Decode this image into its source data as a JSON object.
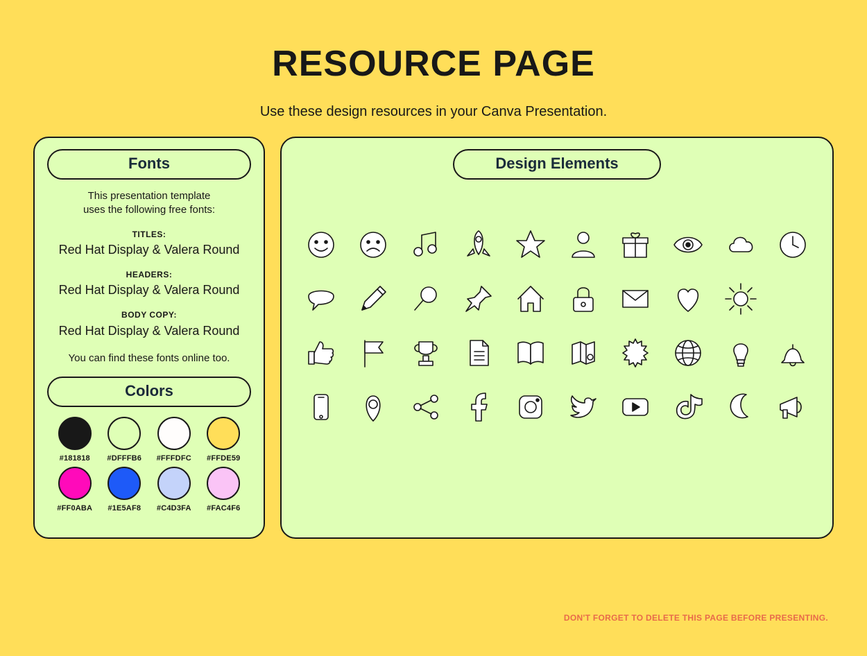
{
  "page": {
    "title": "RESOURCE PAGE",
    "subtitle": "Use these design resources in your Canva Presentation.",
    "background_color": "#ffde59",
    "panel_color": "#dfffb6",
    "text_color": "#181818"
  },
  "fonts_panel": {
    "heading": "Fonts",
    "intro_line1": "This presentation template",
    "intro_line2": "uses the following free fonts:",
    "titles_label": "TITLES:",
    "titles_value": "Red Hat Display & Valera Round",
    "headers_label": "HEADERS:",
    "headers_value": "Red Hat Display & Valera Round",
    "body_label": "BODY COPY:",
    "body_value": "Red Hat Display & Valera Round",
    "footer": "You can find these fonts online too."
  },
  "colors_panel": {
    "heading": "Colors",
    "swatches": [
      {
        "hex": "#181818",
        "label": "#181818"
      },
      {
        "hex": "#DFFFB6",
        "label": "#DFFFB6"
      },
      {
        "hex": "#FFFDFC",
        "label": "#FFFDFC"
      },
      {
        "hex": "#FFDE59",
        "label": "#FFDE59"
      },
      {
        "hex": "#FF0ABA",
        "label": "#FF0ABA"
      },
      {
        "hex": "#1E5AF8",
        "label": "#1E5AF8"
      },
      {
        "hex": "#C4D3FA",
        "label": "#C4D3FA"
      },
      {
        "hex": "#FAC4F6",
        "label": "#FAC4F6"
      }
    ]
  },
  "elements_panel": {
    "heading": "Design Elements",
    "icon_fill": "#ffffff",
    "icon_stroke": "#181818",
    "icons": [
      "smile-icon",
      "frown-icon",
      "music-icon",
      "rocket-icon",
      "star-icon",
      "user-icon",
      "gift-icon",
      "eye-icon",
      "cloud-icon",
      "clock-icon",
      "speech-icon",
      "pencil-icon",
      "search-icon",
      "pin-icon",
      "home-icon",
      "lock-icon",
      "mail-icon",
      "heart-icon",
      "sun-icon",
      "thumbs-up-icon",
      "flag-icon",
      "trophy-icon",
      "document-icon",
      "book-icon",
      "map-icon",
      "gear-icon",
      "globe-icon",
      "lightbulb-icon",
      "bell-icon",
      "phone-icon",
      "location-icon",
      "share-icon",
      "facebook-icon",
      "instagram-icon",
      "twitter-icon",
      "youtube-icon",
      "tiktok-icon",
      "moon-icon",
      "megaphone-icon"
    ]
  },
  "footnote": "DON'T FORGET TO DELETE THIS PAGE BEFORE PRESENTING."
}
